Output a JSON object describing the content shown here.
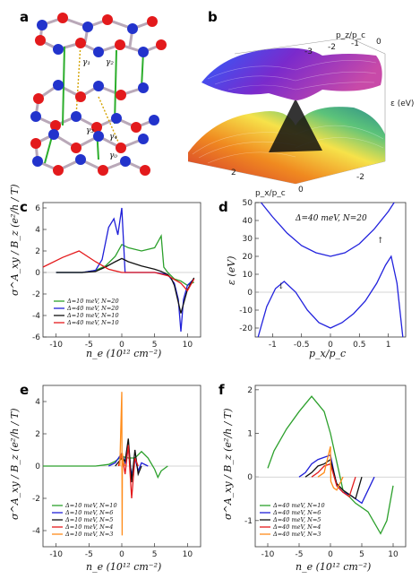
{
  "panels": {
    "a": {
      "label": "a",
      "gammas": [
        "γ₁",
        "γ₂",
        "γ₃",
        "γ₄",
        "γ₀"
      ]
    },
    "b": {
      "label": "b",
      "pz_label": "p_z/p_c",
      "px_label": "p_x/p_c",
      "eps_label": "ε (eV)",
      "pz_ticks": [
        "-3",
        "-2",
        "-1",
        "0"
      ],
      "px_ticks": [
        "2",
        "0",
        "-2"
      ]
    },
    "c": {
      "label": "c",
      "xlabel": "n_e (10¹² cm⁻²)",
      "ylabel": "σ^A_xy / B_z (e²/h / T)"
    },
    "d": {
      "label": "d",
      "xlabel": "p_x/p_c",
      "ylabel": "ε (eV)",
      "annotation": "Δ=40 meV, N=20"
    },
    "e": {
      "label": "e",
      "xlabel": "n_e (10¹² cm⁻²)",
      "ylabel": "σ^A_xy / B_z (e²/h / T)"
    },
    "f": {
      "label": "f",
      "xlabel": "n_e (10¹² cm⁻²)",
      "ylabel": "σ^A_xy / B_z (e²/h / T)"
    }
  },
  "chart_data": [
    {
      "panel": "c",
      "type": "line",
      "xlim": [
        -12,
        12
      ],
      "ylim": [
        -6,
        6.5
      ],
      "xticks": [
        -10,
        -5,
        0,
        5,
        10
      ],
      "yticks": [
        -6,
        -4,
        -2,
        0,
        2,
        4,
        6
      ],
      "series": [
        {
          "name": "Δ=10 meV, N=20",
          "color": "#2ca02c",
          "x": [
            -10,
            -6,
            -4,
            -2.5,
            -1,
            0,
            1,
            3,
            5,
            6,
            6.4,
            7,
            8,
            9,
            10,
            11
          ],
          "y": [
            0,
            0,
            0.2,
            0.6,
            1.5,
            2.6,
            2.3,
            2.0,
            2.3,
            3.4,
            0.5,
            0,
            -0.6,
            -0.8,
            -1.2,
            -0.9
          ]
        },
        {
          "name": "Δ=40 meV, N=20",
          "color": "#1f1fd8",
          "x": [
            -10,
            -6,
            -4,
            -3,
            -2,
            -1.2,
            -0.6,
            0,
            0.5,
            2,
            5,
            7,
            8,
            8.6,
            9,
            9.4,
            10,
            11
          ],
          "y": [
            0,
            0,
            0.2,
            1.2,
            4.2,
            5.0,
            3.5,
            6.0,
            0,
            0,
            0,
            -0.2,
            -1,
            -2.5,
            -5.5,
            -2.5,
            -1.2,
            -0.6
          ]
        },
        {
          "name": "Δ=10 meV, N=10",
          "color": "#111111",
          "x": [
            -10,
            -6,
            -4,
            -2.5,
            -1,
            0,
            1,
            3,
            5,
            6,
            7,
            7.5,
            8,
            9,
            10,
            11
          ],
          "y": [
            0,
            0,
            0.1,
            0.5,
            1.0,
            1.3,
            1.0,
            0.6,
            0.3,
            0.1,
            -0.2,
            -0.5,
            -1.2,
            -3.8,
            -1.6,
            -0.5
          ]
        },
        {
          "name": "Δ=40 meV, N=10",
          "color": "#e41a1c",
          "x": [
            -12,
            -9,
            -6.5,
            -4,
            -2,
            0,
            2,
            5,
            7,
            9,
            10,
            11
          ],
          "y": [
            0.5,
            1.4,
            2.0,
            1.0,
            0.3,
            0,
            0,
            0,
            -0.3,
            -1.0,
            -1.7,
            -0.6
          ]
        }
      ]
    },
    {
      "panel": "d",
      "type": "line",
      "xlim": [
        -1.3,
        1.3
      ],
      "ylim": [
        -25,
        50
      ],
      "xticks": [
        -1.0,
        -0.5,
        0.0,
        0.5,
        1.0
      ],
      "yticks": [
        -20,
        -10,
        0,
        10,
        20,
        30,
        40,
        50
      ],
      "series": [
        {
          "name": "upper band",
          "color": "#2222dd",
          "x": [
            -1.2,
            -1.0,
            -0.75,
            -0.5,
            -0.25,
            0,
            0.25,
            0.5,
            0.75,
            1.0,
            1.1,
            1.2
          ],
          "y": [
            50,
            42,
            33,
            26,
            22,
            20,
            22,
            27,
            35,
            45,
            50,
            55
          ]
        },
        {
          "name": "lower band",
          "color": "#2222dd",
          "x": [
            -1.25,
            -1.1,
            -0.95,
            -0.8,
            -0.6,
            -0.4,
            -0.2,
            0,
            0.2,
            0.4,
            0.6,
            0.8,
            0.95,
            1.05,
            1.15,
            1.25
          ],
          "y": [
            -25,
            -8,
            2,
            6,
            0,
            -10,
            -17,
            -20,
            -17,
            -12,
            -5,
            5,
            15,
            20,
            5,
            -25
          ]
        }
      ]
    },
    {
      "panel": "e",
      "type": "line",
      "xlim": [
        -12,
        12
      ],
      "ylim": [
        -5,
        5
      ],
      "xticks": [
        -10,
        -5,
        0,
        5,
        10
      ],
      "yticks": [
        -4,
        -2,
        0,
        2,
        4
      ],
      "series": [
        {
          "name": "Δ=10 meV, N=10",
          "color": "#2ca02c",
          "x": [
            -12,
            -4,
            -2,
            -1,
            0,
            1,
            2,
            3,
            4,
            5,
            5.5,
            6,
            7
          ],
          "y": [
            0,
            0,
            0.1,
            0.3,
            0.6,
            0.5,
            0.5,
            0.9,
            0.5,
            -0.2,
            -0.7,
            -0.3,
            0
          ]
        },
        {
          "name": "Δ=10 meV, N=6",
          "color": "#1f1fd8",
          "x": [
            -2,
            -1,
            0,
            0.5,
            1,
            1.5,
            2,
            2.5,
            3,
            4
          ],
          "y": [
            0,
            0.2,
            0.8,
            0.2,
            1.1,
            -0.6,
            0.5,
            -0.3,
            0.2,
            0
          ]
        },
        {
          "name": "Δ=10 meV, N=5",
          "color": "#111111",
          "x": [
            -1,
            0,
            0.5,
            1,
            1.5,
            2,
            2.5,
            3
          ],
          "y": [
            0,
            0.5,
            0.3,
            1.7,
            -1.0,
            1.0,
            -0.5,
            0
          ]
        },
        {
          "name": "Δ=10 meV, N=4",
          "color": "#e41a1c",
          "x": [
            -0.5,
            0,
            0.5,
            1,
            1.5,
            2,
            2.5
          ],
          "y": [
            0,
            0.8,
            -0.5,
            1.3,
            -2.0,
            0.5,
            0
          ]
        },
        {
          "name": "Δ=10 meV, N=3",
          "color": "#ff8c1a",
          "x": [
            -0.3,
            0,
            0.05,
            0.1,
            0.2,
            0.5
          ],
          "y": [
            0,
            4.6,
            -4.3,
            0.8,
            0.3,
            0
          ]
        }
      ]
    },
    {
      "panel": "f",
      "type": "line",
      "xlim": [
        -12,
        12
      ],
      "ylim": [
        -1.6,
        2.1
      ],
      "xticks": [
        -10,
        -5,
        0,
        5,
        10
      ],
      "yticks": [
        -1,
        0,
        1,
        2
      ],
      "series": [
        {
          "name": "Δ=40 meV, N=10",
          "color": "#2ca02c",
          "x": [
            -10,
            -9,
            -7,
            -5,
            -3,
            -1,
            0,
            2,
            4,
            6,
            8,
            9,
            10
          ],
          "y": [
            0.2,
            0.6,
            1.1,
            1.5,
            1.85,
            1.5,
            1.0,
            -0.3,
            -0.6,
            -0.8,
            -1.3,
            -1.0,
            -0.2
          ]
        },
        {
          "name": "Δ=40 meV, N=6",
          "color": "#1f1fd8",
          "x": [
            -5,
            -4,
            -3,
            -2,
            -1,
            0,
            1,
            2,
            3,
            4,
            5,
            6,
            7
          ],
          "y": [
            0,
            0.1,
            0.3,
            0.4,
            0.45,
            0.5,
            -0.2,
            -0.35,
            -0.4,
            -0.5,
            -0.6,
            -0.3,
            0
          ]
        },
        {
          "name": "Δ=40 meV, N=5",
          "color": "#111111",
          "x": [
            -4,
            -3,
            -2,
            -1,
            0,
            1,
            2,
            3,
            4,
            5
          ],
          "y": [
            0,
            0.1,
            0.25,
            0.3,
            0.4,
            -0.15,
            -0.3,
            -0.4,
            -0.5,
            0
          ]
        },
        {
          "name": "Δ=40 meV, N=4",
          "color": "#e41a1c",
          "x": [
            -3,
            -2,
            -1,
            0,
            1,
            2,
            3,
            4
          ],
          "y": [
            0,
            0.1,
            0.25,
            0.3,
            -0.2,
            -0.35,
            -0.45,
            0
          ]
        },
        {
          "name": "Δ=40 meV, N=3",
          "color": "#ff8c1a",
          "x": [
            -2,
            -1,
            0,
            0.05,
            0.5,
            1,
            2
          ],
          "y": [
            0,
            0.1,
            0.7,
            -0.1,
            -0.25,
            -0.3,
            0
          ]
        }
      ]
    }
  ]
}
